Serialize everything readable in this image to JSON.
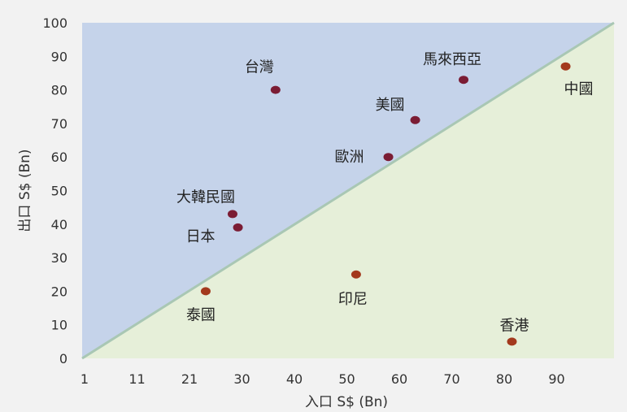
{
  "chart_data": {
    "type": "scatter",
    "title": "",
    "xlabel": "入口 S$ (Bn)",
    "ylabel": "出口 S$ (Bn)",
    "x_ticks": [
      "1",
      "11",
      "21",
      "30",
      "40",
      "50",
      "60",
      "70",
      "80",
      "90"
    ],
    "y_ticks": [
      "0",
      "10",
      "20",
      "30",
      "40",
      "50",
      "60",
      "70",
      "80",
      "90",
      "100"
    ],
    "xlim": [
      1,
      100
    ],
    "ylim": [
      0,
      100
    ],
    "grid": false,
    "legend": "none",
    "regions": {
      "above_diagonal_color": "#c5d3ea",
      "below_diagonal_color": "#e6efd9",
      "diagonal_color": "#a9c7b4"
    },
    "points": [
      {
        "label": "台灣",
        "x": 37,
        "y": 80,
        "color": "#7b1c34"
      },
      {
        "label": "馬來西亞",
        "x": 72,
        "y": 83,
        "color": "#7b1c34"
      },
      {
        "label": "美國",
        "x": 63,
        "y": 71,
        "color": "#7b1c34"
      },
      {
        "label": "歐洲",
        "x": 58,
        "y": 60,
        "color": "#7b1c34"
      },
      {
        "label": "大韓民國",
        "x": 29,
        "y": 43,
        "color": "#7b1c34"
      },
      {
        "label": "日本",
        "x": 30,
        "y": 39,
        "color": "#7b1c34"
      },
      {
        "label": "中國",
        "x": 91,
        "y": 87,
        "color": "#a3391d"
      },
      {
        "label": "泰國",
        "x": 24,
        "y": 20,
        "color": "#a3391d"
      },
      {
        "label": "印尼",
        "x": 52,
        "y": 25,
        "color": "#a3391d"
      },
      {
        "label": "香港",
        "x": 81,
        "y": 5,
        "color": "#a3391d"
      }
    ]
  }
}
